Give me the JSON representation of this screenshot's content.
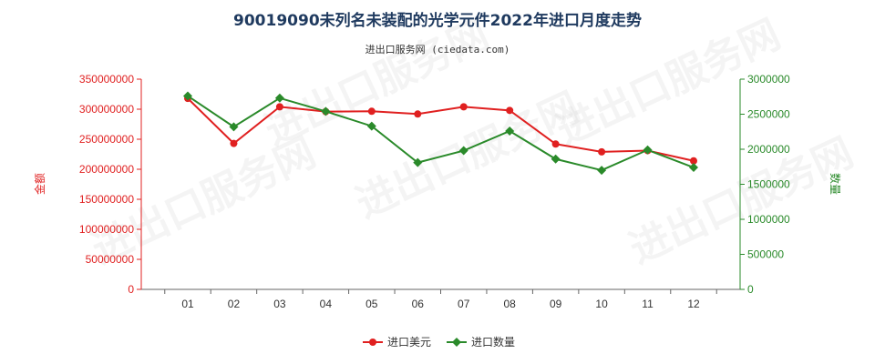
{
  "chart_data": {
    "type": "line",
    "title": "90019090未列名未装配的光学元件2022年进口月度走势",
    "subtitle": "进出口服务网 (ciedata.com)",
    "categories": [
      "01",
      "02",
      "03",
      "04",
      "05",
      "06",
      "07",
      "08",
      "09",
      "10",
      "11",
      "12"
    ],
    "y_left": {
      "label": "金额",
      "range": [
        0,
        350000000
      ],
      "ticks": [
        "0",
        "50000000",
        "100000000",
        "150000000",
        "200000000",
        "250000000",
        "300000000",
        "350000000"
      ],
      "tick_values": [
        0,
        50000000,
        100000000,
        150000000,
        200000000,
        250000000,
        300000000,
        350000000
      ],
      "color": "#e02020"
    },
    "y_right": {
      "label": "数量",
      "range": [
        0,
        3000000
      ],
      "ticks": [
        "0",
        "500000",
        "1000000",
        "1500000",
        "2000000",
        "2500000",
        "3000000"
      ],
      "tick_values": [
        0,
        500000,
        1000000,
        1500000,
        2000000,
        2500000,
        3000000
      ],
      "color": "#2a8a2a"
    },
    "series": [
      {
        "name": "进口美元",
        "axis": "left",
        "color": "#e02020",
        "values": [
          318000000,
          243000000,
          304000000,
          296000000,
          296500000,
          292000000,
          304000000,
          298000000,
          242000000,
          229000000,
          231000000,
          214000000
        ]
      },
      {
        "name": "进口数量",
        "axis": "right",
        "color": "#2a8a2a",
        "values": [
          2760000,
          2320000,
          2730000,
          2540000,
          2330000,
          1810000,
          1980000,
          2260000,
          1860000,
          1700000,
          1990000,
          1740000
        ]
      }
    ],
    "legend_position": "bottom-center",
    "grid": false,
    "watermark": "进出口服务网"
  }
}
